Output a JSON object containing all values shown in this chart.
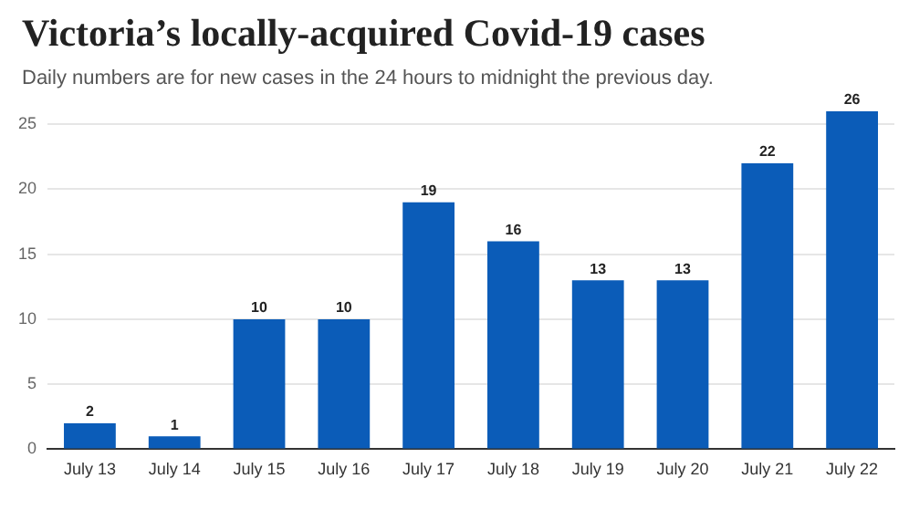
{
  "chart_data": {
    "type": "bar",
    "title": "Victoria’s locally-acquired Covid-19 cases",
    "subtitle": "Daily numbers are for new cases in the 24 hours to midnight the previous day.",
    "categories": [
      "July 13",
      "July 14",
      "July 15",
      "July 16",
      "July 17",
      "July 18",
      "July 19",
      "July 20",
      "July 21",
      "July 22"
    ],
    "values": [
      2,
      1,
      10,
      10,
      19,
      16,
      13,
      13,
      22,
      26
    ],
    "color": "#0b5cb8",
    "ylim": [
      0,
      26
    ],
    "yticks": [
      0,
      5,
      10,
      15,
      20,
      25
    ],
    "grid": "y",
    "data_labels": true
  }
}
